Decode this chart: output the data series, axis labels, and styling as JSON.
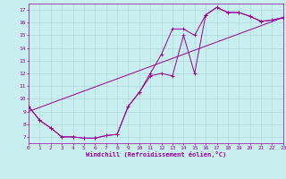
{
  "xlabel": "Windchill (Refroidissement éolien,°C)",
  "bg_color": "#c8eef0",
  "grid_color": "#aad4d8",
  "line_color": "#990099",
  "xlim": [
    0,
    23
  ],
  "ylim": [
    6.5,
    17.5
  ],
  "xticks": [
    0,
    1,
    2,
    3,
    4,
    5,
    6,
    7,
    8,
    9,
    10,
    11,
    12,
    13,
    14,
    15,
    16,
    17,
    18,
    19,
    20,
    21,
    22,
    23
  ],
  "yticks": [
    7,
    8,
    9,
    10,
    11,
    12,
    13,
    14,
    15,
    16,
    17
  ],
  "line1_x": [
    0,
    1,
    2,
    3,
    4,
    5,
    6,
    7,
    8,
    9,
    10,
    11,
    12,
    13,
    14,
    15,
    16,
    17,
    18,
    19,
    20,
    21,
    22,
    23
  ],
  "line1_y": [
    9.4,
    8.3,
    7.7,
    7.0,
    7.0,
    6.9,
    6.9,
    7.1,
    7.2,
    9.4,
    10.5,
    11.8,
    12.0,
    11.8,
    15.0,
    12.0,
    16.6,
    17.2,
    16.8,
    16.8,
    16.5,
    16.1,
    16.2,
    16.4
  ],
  "line2_x": [
    0,
    1,
    2,
    3,
    4,
    5,
    6,
    7,
    8,
    9,
    10,
    11,
    12,
    13,
    14,
    15,
    16,
    17,
    18,
    19,
    20,
    21,
    22,
    23
  ],
  "line2_y": [
    9.4,
    8.3,
    7.7,
    7.0,
    7.0,
    6.9,
    6.9,
    7.1,
    7.2,
    9.4,
    10.5,
    12.0,
    13.5,
    15.5,
    15.5,
    15.0,
    16.6,
    17.2,
    16.8,
    16.8,
    16.5,
    16.1,
    16.2,
    16.4
  ],
  "line3_x": [
    0,
    23
  ],
  "line3_y": [
    9.0,
    16.4
  ],
  "tick_fontsize": 4.5,
  "xlabel_fontsize": 5.0
}
